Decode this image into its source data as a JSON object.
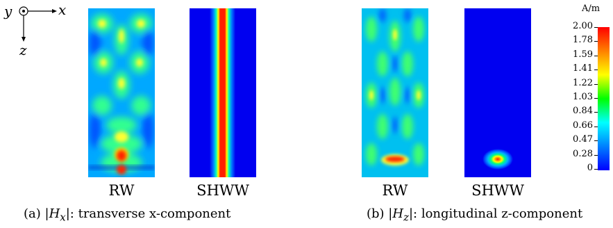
{
  "axes": {
    "y": "y",
    "x": "x",
    "z": "z"
  },
  "panels": [
    {
      "key": "a",
      "rw_label": "RW",
      "shww_label": "SHWW",
      "caption_prefix": "(a) |",
      "caption_var": "H",
      "caption_sub": "x",
      "caption_suffix": "|: transverse x-component"
    },
    {
      "key": "b",
      "rw_label": "RW",
      "shww_label": "SHWW",
      "caption_prefix": "(b) |",
      "caption_var": "H",
      "caption_sub": "z",
      "caption_suffix": "|: longitudinal z-component"
    }
  ],
  "colorbar": {
    "unit": "A/m",
    "ticks": [
      "2.00",
      "1.78",
      "1.59",
      "1.41",
      "1.22",
      "1.03",
      "0.84",
      "0.66",
      "0.47",
      "0.28",
      "0"
    ],
    "colors": [
      "#ff0000",
      "#ff8000",
      "#ffff00",
      "#00ff00",
      "#00ffff",
      "#0080ff",
      "#0000ff"
    ]
  }
}
